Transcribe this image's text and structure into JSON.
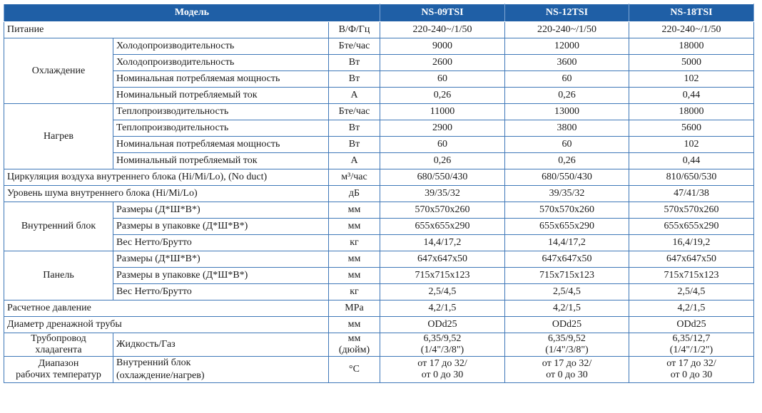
{
  "header": {
    "model_label": "Модель",
    "models": [
      "NS-09TSI",
      "NS-12TSI",
      "NS-18TSI"
    ]
  },
  "rows": {
    "power": {
      "label": "Питание",
      "unit": "В/Ф/Гц",
      "values": [
        "220-240~/1/50",
        "220-240~/1/50",
        "220-240~/1/50"
      ]
    },
    "cooling": {
      "group": "Охлаждение",
      "items": [
        {
          "label": "Холодопроизводительность",
          "unit": "Бте/час",
          "values": [
            "9000",
            "12000",
            "18000"
          ]
        },
        {
          "label": "Холодопроизводительность",
          "unit": "Вт",
          "values": [
            "2600",
            "3600",
            "5000"
          ]
        },
        {
          "label": "Номинальная потребляемая мощность",
          "unit": "Вт",
          "values": [
            "60",
            "60",
            "102"
          ]
        },
        {
          "label": "Номинальный потребляемый ток",
          "unit": "А",
          "values": [
            "0,26",
            "0,26",
            "0,44"
          ]
        }
      ]
    },
    "heating": {
      "group": "Нагрев",
      "items": [
        {
          "label": "Теплопроизводительность",
          "unit": "Бте/час",
          "values": [
            "11000",
            "13000",
            "18000"
          ]
        },
        {
          "label": "Теплопроизводительность",
          "unit": "Вт",
          "values": [
            "2900",
            "3800",
            "5600"
          ]
        },
        {
          "label": "Номинальная потребляемая мощность",
          "unit": "Вт",
          "values": [
            "60",
            "60",
            "102"
          ]
        },
        {
          "label": "Номинальный потребляемый ток",
          "unit": "А",
          "values": [
            "0,26",
            "0,26",
            "0,44"
          ]
        }
      ]
    },
    "airflow": {
      "label": "Циркуляция воздуха внутреннего блока (Hi/Mi/Lo), (No duct)",
      "unit": "м³/час",
      "values": [
        "680/550/430",
        "680/550/430",
        "810/650/530"
      ]
    },
    "noise": {
      "label": "Уровень шума внутреннего блока (Hi/Mi/Lo)",
      "unit": "дБ",
      "values": [
        "39/35/32",
        "39/35/32",
        "47/41/38"
      ]
    },
    "indoor": {
      "group": "Внутренний блок",
      "items": [
        {
          "label": "Размеры (Д*Ш*В*)",
          "unit": "мм",
          "values": [
            "570x570x260",
            "570x570x260",
            "570x570x260"
          ]
        },
        {
          "label": "Размеры в упаковке (Д*Ш*В*)",
          "unit": "мм",
          "values": [
            "655x655x290",
            "655x655x290",
            "655x655x290"
          ]
        },
        {
          "label": "Вес Нетто/Брутто",
          "unit": "кг",
          "values": [
            "14,4/17,2",
            "14,4/17,2",
            "16,4/19,2"
          ]
        }
      ]
    },
    "panel": {
      "group": "Панель",
      "items": [
        {
          "label": "Размеры (Д*Ш*В*)",
          "unit": "мм",
          "values": [
            "647x647x50",
            "647x647x50",
            "647x647x50"
          ]
        },
        {
          "label": "Размеры в упаковке (Д*Ш*В*)",
          "unit": "мм",
          "values": [
            "715x715x123",
            "715x715x123",
            "715x715x123"
          ]
        },
        {
          "label": "Вес Нетто/Брутто",
          "unit": "кг",
          "values": [
            "2,5/4,5",
            "2,5/4,5",
            "2,5/4,5"
          ]
        }
      ]
    },
    "pressure": {
      "label": "Расчетное давление",
      "unit": "MPa",
      "values": [
        "4,2/1,5",
        "4,2/1,5",
        "4,2/1,5"
      ]
    },
    "drain": {
      "label": "Диаметр дренажной трубы",
      "unit": "мм",
      "values": [
        "ODd25",
        "ODd25",
        "ODd25"
      ]
    },
    "piping": {
      "group_line1": "Трубопровод",
      "group_line2": "хладагента",
      "label": "Жидкость/Газ",
      "unit_line1": "мм",
      "unit_line2": "(дюйм)",
      "values_line1": [
        "6,35/9,52",
        "6,35/9,52",
        "6,35/12,7"
      ],
      "values_line2": [
        "(1/4\"/3/8\")",
        "(1/4\"/3/8\")",
        "(1/4\"/1/2\")"
      ]
    },
    "temp_range": {
      "group_line1": "Диапазон",
      "group_line2": "рабочих температур",
      "label_line1": "Внутренний блок",
      "label_line2": "(охлаждение/нагрев)",
      "unit": "°C",
      "values_line1": [
        "от 17 до 32/",
        "от 17 до 32/",
        "от 17 до 32/"
      ],
      "values_line2": [
        "от 0 до 30",
        "от 0 до 30",
        "от 0 до 30"
      ]
    }
  }
}
